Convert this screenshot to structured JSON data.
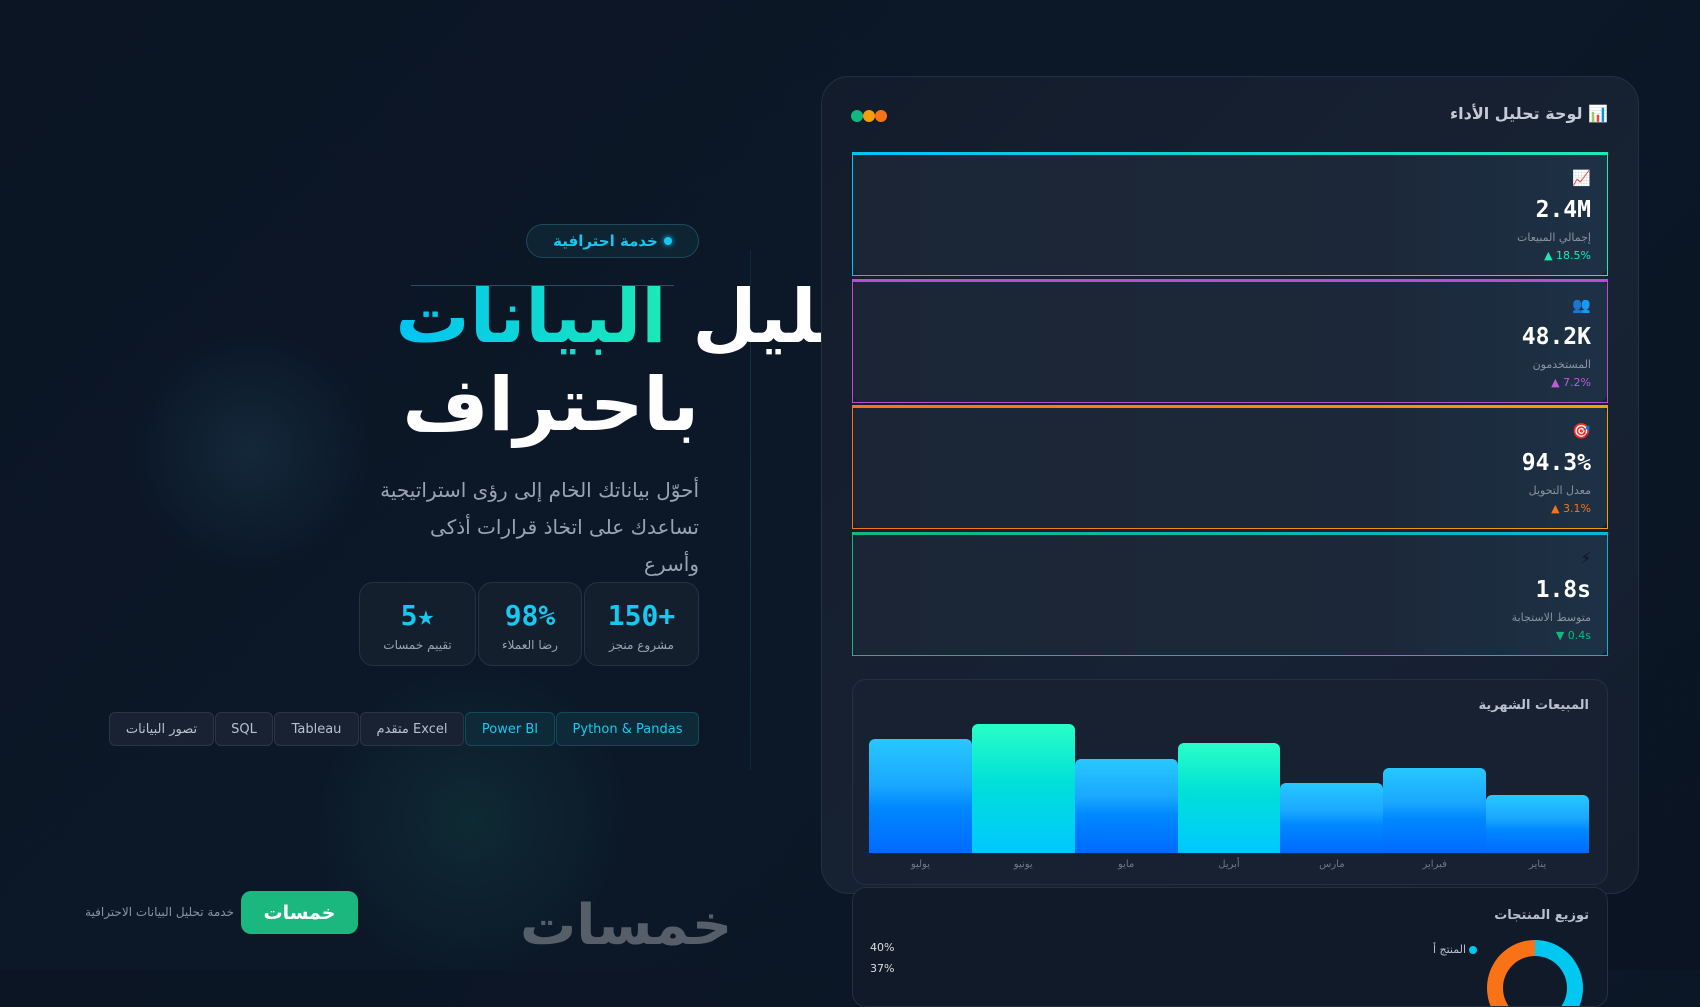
{
  "hero": {
    "badge": "خدمة احترافية",
    "title_part1": "تحليل ",
    "title_highlight": "البيانات",
    "title_line2": "باحتراف",
    "subtitle_line1": "أحوّل بياناتك الخام إلى رؤى استراتيجية",
    "subtitle_line2": "تساعدك على اتخاذ قرارات أذكى وأسرع",
    "stats": [
      {
        "value": "150+",
        "label": "مشروع منجز"
      },
      {
        "value": "98%",
        "label": "رضا العملاء"
      },
      {
        "value": "5★",
        "label": "تقييم خمسات"
      }
    ],
    "tags": [
      {
        "label": "Python & Pandas",
        "highlight": true
      },
      {
        "label": "Power BI",
        "highlight": true
      },
      {
        "label": "Excel متقدم",
        "highlight": false
      },
      {
        "label": "Tableau",
        "highlight": false
      },
      {
        "label": "SQL",
        "highlight": false
      },
      {
        "label": "تصور البيانات",
        "highlight": false
      }
    ]
  },
  "footer": {
    "button": "خمسات",
    "text": "خدمة تحليل البيانات الاحترافية",
    "logo": "خمسات"
  },
  "dashboard": {
    "title": "📊 لوحة تحليل الأداء",
    "window_dots": [
      "#10b981",
      "#f59e0b",
      "#f97316"
    ],
    "kpis": [
      {
        "icon": "chart-icon",
        "glyph": "📈",
        "value": "2.4M",
        "label": "إجمالي المبيعات",
        "change": "▲ 18.5%",
        "color": "#1de9b6",
        "accent": "linear-gradient(90deg,#00c4f4,#1de9b6)"
      },
      {
        "icon": "users-icon",
        "glyph": "👥",
        "value": "48.2K",
        "label": "المستخدمون",
        "change": "▲ 7.2%",
        "color": "#c25bd6",
        "accent": "#b94fd0"
      },
      {
        "icon": "target-icon",
        "glyph": "🎯",
        "value": "94.3%",
        "label": "معدل التحويل",
        "change": "▲ 3.1%",
        "color": "#f97316",
        "accent": "linear-gradient(90deg,#f97316,#f59e0b)"
      },
      {
        "icon": "lightning-icon",
        "glyph": "⚡",
        "value": "1.8s",
        "label": "متوسط الاستجابة",
        "change": "▼ 0.4s",
        "color": "#10b981",
        "accent": "linear-gradient(90deg,#10b981,#06b6d4)"
      }
    ],
    "distribution": {
      "title": "توزيع المنتجات",
      "legend": [
        {
          "label": "المنتج أ",
          "color": "#00c8f0"
        }
      ],
      "percent_labels": [
        "40%",
        "37%"
      ]
    }
  },
  "chart_data": {
    "type": "bar",
    "title": "المبيعات الشهرية",
    "categories": [
      "يناير",
      "فبراير",
      "مارس",
      "أبريل",
      "مايو",
      "يونيو",
      "يوليو"
    ],
    "values": [
      45,
      66,
      54,
      85,
      73,
      100,
      88
    ],
    "highlighted": [
      "أبريل",
      "يونيو"
    ],
    "colors": {
      "normal": "#1a8cff",
      "highlight": "#1de9b6"
    }
  }
}
